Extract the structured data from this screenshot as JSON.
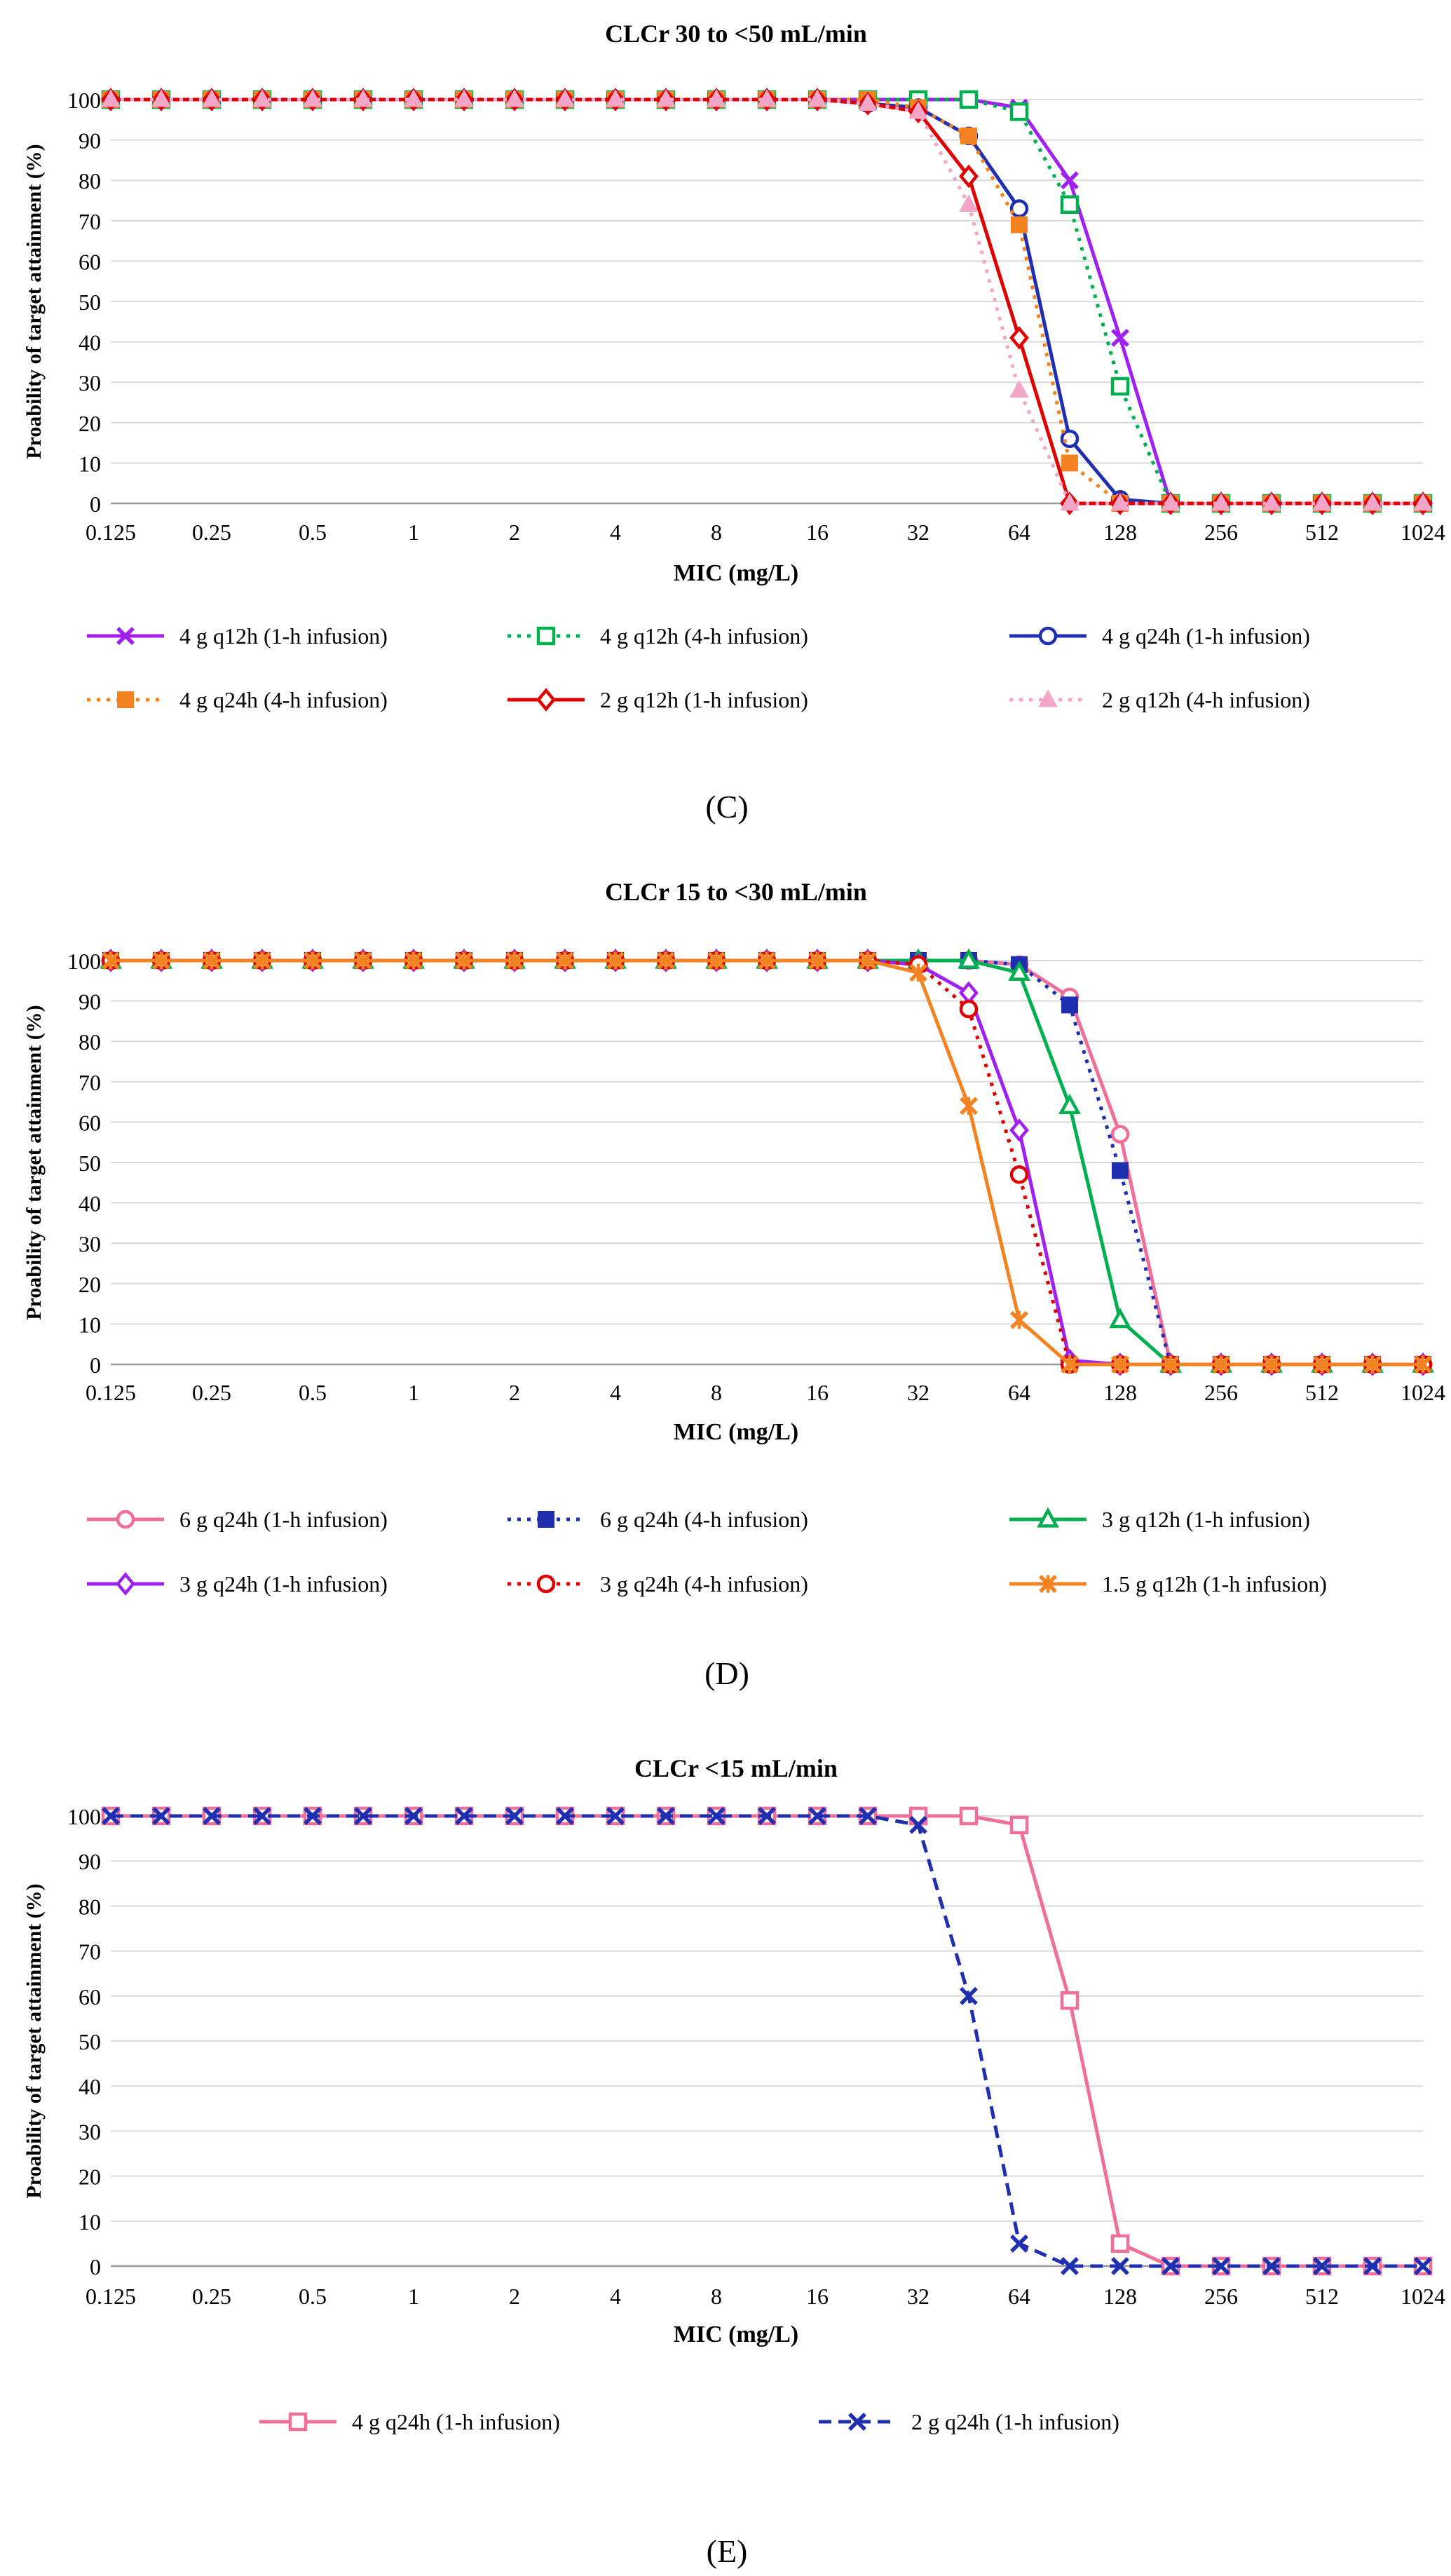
{
  "chart_data": [
    {
      "type": "line",
      "panel_label": "(C)",
      "title": "CLCr 30 to <50 mL/min",
      "xlabel": "MIC (mg/L)",
      "ylabel": "Proability of target attainment (%)",
      "x_scale": "log2",
      "xlim": [
        0.125,
        1024
      ],
      "ylim": [
        0,
        100
      ],
      "y_ticks": [
        "0",
        "10",
        "20",
        "30",
        "40",
        "50",
        "60",
        "70",
        "80",
        "90",
        "100"
      ],
      "x_ticks": [
        "0.125",
        "0.25",
        "0.5",
        "1",
        "2",
        "4",
        "8",
        "16",
        "32",
        "64",
        "128",
        "256",
        "512",
        "1024"
      ],
      "x": [
        0.125,
        0.1768,
        0.25,
        0.3536,
        0.5,
        0.7071,
        1,
        1.4142,
        2,
        2.8284,
        4,
        5.6569,
        8,
        11.3137,
        16,
        22.6274,
        32,
        45.2548,
        64,
        90.5097,
        128,
        181.0193,
        256,
        362.0387,
        512,
        724.0773,
        1024
      ],
      "series": [
        {
          "name": "4 g q12h (1-h infusion)",
          "color": "#a020f0",
          "dash": "solid",
          "marker": "x",
          "values": [
            100,
            100,
            100,
            100,
            100,
            100,
            100,
            100,
            100,
            100,
            100,
            100,
            100,
            100,
            100,
            100,
            100,
            100,
            98,
            80,
            41,
            0,
            0,
            0,
            0,
            0,
            0
          ]
        },
        {
          "name": "4 g q12h (4-h infusion)",
          "color": "#00b050",
          "dash": "dot",
          "marker": "square-open",
          "values": [
            100,
            100,
            100,
            100,
            100,
            100,
            100,
            100,
            100,
            100,
            100,
            100,
            100,
            100,
            100,
            100,
            100,
            100,
            97,
            74,
            29,
            0,
            0,
            0,
            0,
            0,
            0
          ]
        },
        {
          "name": "4 g q24h (1-h infusion)",
          "color": "#1f2fb0",
          "dash": "solid",
          "marker": "circle-open",
          "values": [
            100,
            100,
            100,
            100,
            100,
            100,
            100,
            100,
            100,
            100,
            100,
            100,
            100,
            100,
            100,
            99,
            98,
            91,
            73,
            16,
            1,
            0,
            0,
            0,
            0,
            0,
            0
          ]
        },
        {
          "name": "4 g q24h (4-h infusion)",
          "color": "#f58220",
          "dash": "dot",
          "marker": "square-filled",
          "values": [
            100,
            100,
            100,
            100,
            100,
            100,
            100,
            100,
            100,
            100,
            100,
            100,
            100,
            100,
            100,
            100,
            98,
            91,
            69,
            10,
            0,
            0,
            0,
            0,
            0,
            0,
            0
          ]
        },
        {
          "name": "2 g q12h (1-h infusion)",
          "color": "#e00000",
          "dash": "solid",
          "marker": "diamond-open",
          "values": [
            100,
            100,
            100,
            100,
            100,
            100,
            100,
            100,
            100,
            100,
            100,
            100,
            100,
            100,
            100,
            99,
            97,
            81,
            41,
            0,
            0,
            0,
            0,
            0,
            0,
            0,
            0
          ]
        },
        {
          "name": "2 g q12h (4-h infusion)",
          "color": "#f4a6c8",
          "dash": "dot",
          "marker": "triangle-filled",
          "values": [
            100,
            100,
            100,
            100,
            100,
            100,
            100,
            100,
            100,
            100,
            100,
            100,
            100,
            100,
            100,
            99,
            97,
            74,
            28,
            0,
            0,
            0,
            0,
            0,
            0,
            0,
            0
          ]
        }
      ]
    },
    {
      "type": "line",
      "panel_label": "(D)",
      "title": "CLCr 15 to <30 mL/min",
      "xlabel": "MIC (mg/L)",
      "ylabel": "Proability of target attainment (%)",
      "x_scale": "log2",
      "xlim": [
        0.125,
        1024
      ],
      "ylim": [
        0,
        100
      ],
      "y_ticks": [
        "0",
        "10",
        "20",
        "30",
        "40",
        "50",
        "60",
        "70",
        "80",
        "90",
        "100"
      ],
      "x_ticks": [
        "0.125",
        "0.25",
        "0.5",
        "1",
        "2",
        "4",
        "8",
        "16",
        "32",
        "64",
        "128",
        "256",
        "512",
        "1024"
      ],
      "x": [
        0.125,
        0.1768,
        0.25,
        0.3536,
        0.5,
        0.7071,
        1,
        1.4142,
        2,
        2.8284,
        4,
        5.6569,
        8,
        11.3137,
        16,
        22.6274,
        32,
        45.2548,
        64,
        90.5097,
        128,
        181.0193,
        256,
        362.0387,
        512,
        724.0773,
        1024
      ],
      "series": [
        {
          "name": "6 g q24h (1-h infusion)",
          "color": "#ef6f9a",
          "dash": "solid",
          "marker": "circle-open",
          "values": [
            100,
            100,
            100,
            100,
            100,
            100,
            100,
            100,
            100,
            100,
            100,
            100,
            100,
            100,
            100,
            100,
            100,
            100,
            99,
            91,
            57,
            0,
            0,
            0,
            0,
            0,
            0
          ]
        },
        {
          "name": "6 g q24h (4-h infusion)",
          "color": "#1f2fb0",
          "dash": "dot",
          "marker": "square-filled",
          "values": [
            100,
            100,
            100,
            100,
            100,
            100,
            100,
            100,
            100,
            100,
            100,
            100,
            100,
            100,
            100,
            100,
            100,
            100,
            99,
            89,
            48,
            0,
            0,
            0,
            0,
            0,
            0
          ]
        },
        {
          "name": "3 g q12h (1-h infusion)",
          "color": "#00b050",
          "dash": "solid",
          "marker": "triangle-open",
          "values": [
            100,
            100,
            100,
            100,
            100,
            100,
            100,
            100,
            100,
            100,
            100,
            100,
            100,
            100,
            100,
            100,
            100,
            100,
            97,
            64,
            11,
            0,
            0,
            0,
            0,
            0,
            0
          ]
        },
        {
          "name": "3 g q24h (1-h infusion)",
          "color": "#a020f0",
          "dash": "solid",
          "marker": "diamond-open",
          "values": [
            100,
            100,
            100,
            100,
            100,
            100,
            100,
            100,
            100,
            100,
            100,
            100,
            100,
            100,
            100,
            100,
            99,
            92,
            58,
            1,
            0,
            0,
            0,
            0,
            0,
            0,
            0
          ]
        },
        {
          "name": "3 g q24h (4-h infusion)",
          "color": "#e00000",
          "dash": "dot",
          "marker": "circle-open",
          "values": [
            100,
            100,
            100,
            100,
            100,
            100,
            100,
            100,
            100,
            100,
            100,
            100,
            100,
            100,
            100,
            100,
            99,
            88,
            47,
            0,
            0,
            0,
            0,
            0,
            0,
            0,
            0
          ]
        },
        {
          "name": "1.5 g q12h (1-h infusion)",
          "color": "#f58220",
          "dash": "solid",
          "marker": "star",
          "values": [
            100,
            100,
            100,
            100,
            100,
            100,
            100,
            100,
            100,
            100,
            100,
            100,
            100,
            100,
            100,
            100,
            97,
            64,
            11,
            0,
            0,
            0,
            0,
            0,
            0,
            0,
            0
          ]
        }
      ]
    },
    {
      "type": "line",
      "panel_label": "(E)",
      "title": "CLCr <15 mL/min",
      "xlabel": "MIC (mg/L)",
      "ylabel": "Proability of target attainment (%)",
      "x_scale": "log2",
      "xlim": [
        0.125,
        1024
      ],
      "ylim": [
        0,
        100
      ],
      "y_ticks": [
        "0",
        "10",
        "20",
        "30",
        "40",
        "50",
        "60",
        "70",
        "80",
        "90",
        "100"
      ],
      "x_ticks": [
        "0.125",
        "0.25",
        "0.5",
        "1",
        "2",
        "4",
        "8",
        "16",
        "32",
        "64",
        "128",
        "256",
        "512",
        "1024"
      ],
      "x": [
        0.125,
        0.1768,
        0.25,
        0.3536,
        0.5,
        0.7071,
        1,
        1.4142,
        2,
        2.8284,
        4,
        5.6569,
        8,
        11.3137,
        16,
        22.6274,
        32,
        45.2548,
        64,
        90.5097,
        128,
        181.0193,
        256,
        362.0387,
        512,
        724.0773,
        1024
      ],
      "series": [
        {
          "name": "4 g q24h (1-h infusion)",
          "color": "#ef6f9a",
          "dash": "solid",
          "marker": "square-open",
          "values": [
            100,
            100,
            100,
            100,
            100,
            100,
            100,
            100,
            100,
            100,
            100,
            100,
            100,
            100,
            100,
            100,
            100,
            100,
            98,
            59,
            5,
            0,
            0,
            0,
            0,
            0,
            0
          ]
        },
        {
          "name": "2 g q24h (1-h infusion)",
          "color": "#1f2fb0",
          "dash": "dash",
          "marker": "x",
          "values": [
            100,
            100,
            100,
            100,
            100,
            100,
            100,
            100,
            100,
            100,
            100,
            100,
            100,
            100,
            100,
            100,
            98,
            60,
            5,
            0,
            0,
            0,
            0,
            0,
            0,
            0,
            0
          ]
        }
      ]
    }
  ]
}
